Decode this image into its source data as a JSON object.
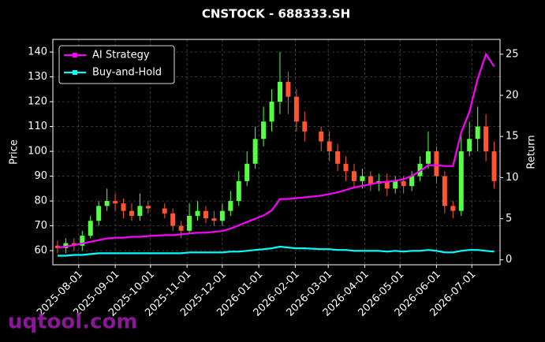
{
  "chart_data": {
    "type": "candlestick",
    "title": "CNSTOCK - 688333.SH",
    "ylabel": "Price",
    "y2label": "Return",
    "watermark": "uqtool.com",
    "x": [
      "2025-07-14",
      "2025-07-21",
      "2025-07-28",
      "2025-08-04",
      "2025-08-11",
      "2025-08-18",
      "2025-08-25",
      "2025-09-01",
      "2025-09-08",
      "2025-09-15",
      "2025-09-22",
      "2025-09-29",
      "2025-10-13",
      "2025-10-20",
      "2025-10-27",
      "2025-11-03",
      "2025-11-10",
      "2025-11-17",
      "2025-11-24",
      "2025-12-01",
      "2025-12-08",
      "2025-12-15",
      "2025-12-22",
      "2025-12-29",
      "2026-01-05",
      "2026-01-12",
      "2026-01-19",
      "2026-01-26",
      "2026-02-02",
      "2026-02-09",
      "2026-02-23",
      "2026-03-02",
      "2026-03-09",
      "2026-03-16",
      "2026-03-23",
      "2026-03-30",
      "2026-04-06",
      "2026-04-13",
      "2026-04-20",
      "2026-04-27",
      "2026-05-04",
      "2026-05-11",
      "2026-05-18",
      "2026-05-25",
      "2026-06-01",
      "2026-06-08",
      "2026-06-15",
      "2026-06-22",
      "2026-06-29",
      "2026-07-06",
      "2026-07-13",
      "2026-07-20"
    ],
    "open": [
      62,
      61,
      63,
      62,
      66,
      72,
      78,
      80,
      79,
      76,
      74,
      78,
      77,
      75,
      70,
      68,
      74,
      76,
      73,
      72,
      76,
      80,
      88,
      95,
      105,
      112,
      120,
      128,
      122,
      112,
      108,
      104,
      100,
      95,
      92,
      88,
      90,
      87,
      88,
      85,
      88,
      86,
      90,
      95,
      100,
      90,
      78,
      76,
      100,
      105,
      110,
      100
    ],
    "high": [
      64,
      65,
      65,
      68,
      74,
      80,
      85,
      83,
      81,
      79,
      83,
      80,
      79,
      77,
      72,
      79,
      80,
      78,
      76,
      79,
      84,
      92,
      100,
      110,
      118,
      125,
      140,
      132,
      125,
      116,
      110,
      108,
      103,
      98,
      95,
      93,
      92,
      91,
      91,
      90,
      90,
      92,
      98,
      108,
      102,
      92,
      80,
      106,
      112,
      118,
      115,
      104
    ],
    "low": [
      59,
      59,
      60,
      60,
      65,
      70,
      76,
      76,
      73,
      72,
      72,
      75,
      73,
      68,
      65,
      67,
      72,
      71,
      70,
      70,
      74,
      78,
      86,
      93,
      102,
      108,
      115,
      115,
      108,
      104,
      100,
      96,
      92,
      88,
      85,
      85,
      84,
      84,
      82,
      83,
      83,
      84,
      88,
      93,
      87,
      75,
      73,
      74,
      98,
      100,
      96,
      85
    ],
    "close": [
      61,
      63,
      62,
      66,
      72,
      78,
      80,
      79,
      76,
      74,
      78,
      77,
      75,
      70,
      68,
      74,
      76,
      73,
      72,
      76,
      80,
      88,
      95,
      105,
      112,
      120,
      128,
      122,
      112,
      108,
      104,
      100,
      95,
      92,
      88,
      90,
      87,
      88,
      85,
      88,
      86,
      90,
      95,
      100,
      90,
      78,
      76,
      100,
      105,
      110,
      100,
      88
    ],
    "up_color": "#55ff44",
    "down_color": "#ff5533",
    "series": [
      {
        "name": "AI Strategy",
        "color": "#ff00ff",
        "axis": "y2",
        "values": [
          1.5,
          1.6,
          1.8,
          2.0,
          2.2,
          2.4,
          2.6,
          2.7,
          2.7,
          2.8,
          2.8,
          2.9,
          3.0,
          3.0,
          3.1,
          3.2,
          3.3,
          3.3,
          3.4,
          3.5,
          3.8,
          4.2,
          4.6,
          5.0,
          5.4,
          6.0,
          7.4,
          7.4,
          7.5,
          7.6,
          7.8,
          8.0,
          8.2,
          8.5,
          8.8,
          9.0,
          9.2,
          9.4,
          9.5,
          9.6,
          9.8,
          10.2,
          10.8,
          11.5,
          11.5,
          11.4,
          11.4,
          15.5,
          18.0,
          22.0,
          25.0,
          23.5
        ]
      },
      {
        "name": "Buy-and-Hold",
        "color": "#00ffff",
        "axis": "y2",
        "values": [
          0.5,
          0.5,
          0.6,
          0.6,
          0.7,
          0.8,
          0.8,
          0.8,
          0.8,
          0.8,
          0.8,
          0.8,
          0.8,
          0.8,
          0.8,
          0.9,
          0.9,
          0.9,
          0.9,
          0.9,
          1.0,
          1.0,
          1.1,
          1.2,
          1.3,
          1.4,
          1.6,
          1.5,
          1.4,
          1.4,
          1.3,
          1.3,
          1.2,
          1.2,
          1.1,
          1.1,
          1.1,
          1.1,
          1.0,
          1.1,
          1.0,
          1.1,
          1.1,
          1.2,
          1.1,
          0.9,
          0.9,
          1.1,
          1.2,
          1.2,
          1.1,
          1.0
        ]
      }
    ],
    "xlim": [
      "2025-07-10",
      "2026-07-25"
    ],
    "xticks": [
      "2025-08-01",
      "2025-09-01",
      "2025-10-01",
      "2025-11-01",
      "2025-12-01",
      "2026-01-01",
      "2026-02-01",
      "2026-03-01",
      "2026-04-01",
      "2026-05-01",
      "2026-06-01",
      "2026-07-01"
    ],
    "ylim": [
      54.3,
      145.1
    ],
    "yticks": [
      60,
      70,
      80,
      90,
      100,
      110,
      120,
      130,
      140
    ],
    "y2lim": [
      -0.6,
      26.8
    ],
    "y2ticks": [
      0,
      5,
      10,
      15,
      20,
      25
    ],
    "grid": true,
    "legend": "upper left"
  }
}
